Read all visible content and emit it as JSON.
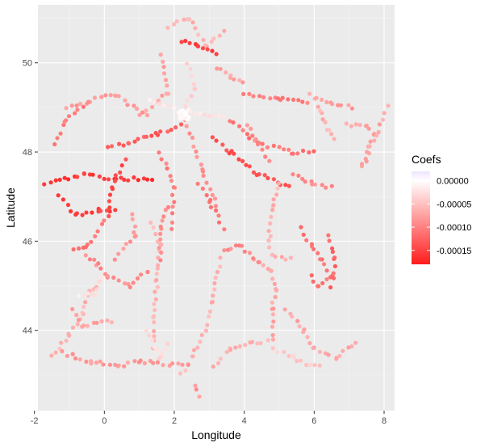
{
  "chart_data": {
    "type": "scatter",
    "xlabel": "Longitude",
    "ylabel": "Latitude",
    "xlim": [
      -1.9,
      8.3
    ],
    "ylim": [
      42.2,
      51.3
    ],
    "xticks": [
      -2,
      0,
      2,
      4,
      6,
      8
    ],
    "yticks": [
      44,
      46,
      48,
      50
    ],
    "grid": true,
    "legend": {
      "title": "Coefs",
      "position": "right",
      "type": "colorbar",
      "range": [
        -0.00018,
        2e-05
      ],
      "breaks": [
        0.0,
        -5e-05,
        -0.0001,
        -0.00015
      ],
      "break_labels": [
        "0.00000",
        "-0.00005",
        "-0.00010",
        "-0.00015"
      ],
      "colors": {
        "high": "#eee4ff",
        "mid": "#ffffff",
        "low": "#ff1c1c"
      }
    },
    "route_points": [
      {
        "path": [
          [
            1.8,
            50.8
          ],
          [
            2.4,
            51.0
          ],
          [
            2.9,
            50.4
          ],
          [
            3.4,
            50.7
          ]
        ],
        "coef": -6e-05
      },
      {
        "path": [
          [
            2.2,
            50.5
          ],
          [
            2.7,
            50.4
          ],
          [
            3.2,
            50.2
          ]
        ],
        "coef": -0.00015
      },
      {
        "path": [
          [
            1.6,
            50.2
          ],
          [
            1.8,
            49.3
          ],
          [
            1.0,
            48.8
          ]
        ],
        "coef": -7e-05
      },
      {
        "path": [
          [
            2.4,
            50.0
          ],
          [
            2.6,
            49.4
          ],
          [
            2.2,
            48.9
          ]
        ],
        "coef": -4e-05
      },
      {
        "path": [
          [
            1.3,
            49.2
          ],
          [
            2.3,
            48.9
          ],
          [
            3.4,
            48.8
          ]
        ],
        "coef": -2e-05
      },
      {
        "path": [
          [
            -1.1,
            49.0
          ],
          [
            0.3,
            49.3
          ],
          [
            1.2,
            48.8
          ]
        ],
        "coef": -8e-05
      },
      {
        "path": [
          [
            -1.4,
            48.2
          ],
          [
            -1.1,
            48.7
          ],
          [
            -0.5,
            49.1
          ]
        ],
        "coef": -0.0001
      },
      {
        "path": [
          [
            -1.7,
            47.3
          ],
          [
            -0.6,
            47.5
          ],
          [
            0.3,
            47.4
          ],
          [
            1.4,
            47.4
          ]
        ],
        "coef": -0.00016
      },
      {
        "path": [
          [
            -1.3,
            47.0
          ],
          [
            -0.8,
            46.6
          ],
          [
            -0.2,
            46.7
          ],
          [
            0.3,
            46.7
          ]
        ],
        "coef": -0.00015
      },
      {
        "path": [
          [
            0.1,
            48.1
          ],
          [
            0.7,
            48.2
          ],
          [
            1.5,
            48.4
          ],
          [
            2.2,
            48.6
          ]
        ],
        "coef": -0.00013
      },
      {
        "path": [
          [
            0.6,
            47.8
          ],
          [
            0.2,
            47.2
          ],
          [
            0.1,
            46.6
          ]
        ],
        "coef": -0.00014
      },
      {
        "path": [
          [
            1.6,
            48.0
          ],
          [
            2.0,
            47.2
          ],
          [
            1.9,
            46.3
          ]
        ],
        "coef": -0.0001
      },
      {
        "path": [
          [
            3.1,
            48.3
          ],
          [
            3.6,
            48.0
          ],
          [
            4.4,
            47.5
          ],
          [
            5.0,
            47.3
          ],
          [
            5.3,
            47.2
          ]
        ],
        "coef": -0.00014
      },
      {
        "path": [
          [
            2.3,
            48.7
          ],
          [
            2.8,
            47.6
          ],
          [
            3.2,
            46.8
          ]
        ],
        "coef": -9e-05
      },
      {
        "path": [
          [
            3.6,
            48.7
          ],
          [
            4.4,
            48.2
          ],
          [
            5.4,
            48.0
          ],
          [
            6.0,
            48.0
          ]
        ],
        "coef": -0.00011
      },
      {
        "path": [
          [
            4.0,
            49.3
          ],
          [
            5.0,
            49.2
          ],
          [
            5.8,
            49.1
          ]
        ],
        "coef": -0.0001
      },
      {
        "path": [
          [
            3.2,
            49.9
          ],
          [
            3.6,
            49.7
          ],
          [
            4.0,
            49.6
          ]
        ],
        "coef": -7e-05
      },
      {
        "path": [
          [
            5.9,
            49.3
          ],
          [
            6.2,
            48.9
          ],
          [
            6.4,
            48.5
          ],
          [
            6.6,
            48.3
          ]
        ],
        "coef": -6e-05
      },
      {
        "path": [
          [
            6.1,
            49.2
          ],
          [
            6.5,
            49.1
          ],
          [
            7.1,
            49.0
          ]
        ],
        "coef": -8e-05
      },
      {
        "path": [
          [
            6.9,
            48.6
          ],
          [
            7.5,
            48.6
          ],
          [
            7.7,
            48.4
          ],
          [
            7.4,
            47.7
          ],
          [
            8.1,
            49.0
          ]
        ],
        "coef": -7e-05
      },
      {
        "path": [
          [
            5.0,
            47.3
          ],
          [
            4.8,
            46.8
          ],
          [
            4.7,
            46.0
          ],
          [
            4.8,
            45.7
          ],
          [
            5.3,
            45.6
          ]
        ],
        "coef": -6e-05
      },
      {
        "path": [
          [
            4.3,
            45.6
          ],
          [
            4.8,
            45.3
          ],
          [
            4.9,
            44.9
          ],
          [
            4.8,
            44.5
          ],
          [
            4.8,
            43.9
          ]
        ],
        "coef": -7e-05
      },
      {
        "path": [
          [
            3.4,
            45.8
          ],
          [
            3.9,
            45.9
          ],
          [
            4.4,
            45.5
          ]
        ],
        "coef": -9e-05
      },
      {
        "path": [
          [
            5.6,
            46.3
          ],
          [
            5.9,
            45.9
          ],
          [
            6.2,
            45.6
          ],
          [
            6.5,
            45.2
          ],
          [
            6.1,
            45.0
          ],
          [
            5.9,
            45.2
          ]
        ],
        "coef": -0.00011
      },
      {
        "path": [
          [
            6.4,
            46.1
          ],
          [
            6.6,
            45.6
          ],
          [
            6.5,
            45.0
          ]
        ],
        "coef": -0.00012
      },
      {
        "path": [
          [
            5.2,
            44.5
          ],
          [
            5.7,
            44.0
          ],
          [
            6.0,
            43.6
          ],
          [
            6.6,
            43.4
          ],
          [
            7.2,
            43.7
          ]
        ],
        "coef": -7e-05
      },
      {
        "path": [
          [
            4.8,
            43.6
          ],
          [
            5.4,
            43.4
          ],
          [
            5.9,
            43.2
          ],
          [
            6.2,
            43.2
          ]
        ],
        "coef": -4e-05
      },
      {
        "path": [
          [
            3.1,
            43.2
          ],
          [
            3.6,
            43.6
          ],
          [
            4.2,
            43.7
          ],
          [
            4.8,
            43.8
          ]
        ],
        "coef": -6e-05
      },
      {
        "path": [
          [
            2.2,
            43.0
          ],
          [
            2.5,
            43.4
          ],
          [
            2.9,
            44.0
          ],
          [
            3.1,
            44.6
          ],
          [
            3.3,
            45.6
          ]
        ],
        "coef": -6e-05
      },
      {
        "path": [
          [
            2.6,
            42.8
          ],
          [
            2.7,
            42.5
          ]
        ],
        "coef": -8e-05
      },
      {
        "path": [
          [
            1.4,
            43.6
          ],
          [
            1.4,
            44.3
          ],
          [
            1.5,
            45.1
          ],
          [
            1.6,
            45.9
          ],
          [
            1.3,
            46.4
          ]
        ],
        "coef": -6e-05
      },
      {
        "path": [
          [
            1.2,
            44.0
          ],
          [
            1.6,
            43.4
          ],
          [
            1.8,
            43.7
          ]
        ],
        "coef": -3e-05
      },
      {
        "path": [
          [
            -1.5,
            43.4
          ],
          [
            -1.0,
            43.9
          ],
          [
            -0.6,
            44.4
          ],
          [
            -0.5,
            44.8
          ],
          [
            -0.2,
            45.0
          ]
        ],
        "coef": -6e-05
      },
      {
        "path": [
          [
            -0.7,
            44.8
          ],
          [
            -0.3,
            44.8
          ],
          [
            -0.1,
            45.2
          ]
        ],
        "coef": -2e-05
      },
      {
        "path": [
          [
            -1.2,
            43.5
          ],
          [
            -0.4,
            43.3
          ],
          [
            0.4,
            43.2
          ],
          [
            1.0,
            43.3
          ],
          [
            2.4,
            43.2
          ]
        ],
        "coef": -8e-05
      },
      {
        "path": [
          [
            -0.5,
            45.7
          ],
          [
            -0.2,
            45.5
          ],
          [
            0.1,
            45.2
          ],
          [
            0.7,
            45.0
          ],
          [
            1.2,
            45.3
          ]
        ],
        "coef": -9e-05
      },
      {
        "path": [
          [
            -0.9,
            45.8
          ],
          [
            -0.5,
            45.9
          ],
          [
            0.0,
            46.5
          ]
        ],
        "coef": -0.00011
      },
      {
        "path": [
          [
            0.3,
            45.6
          ],
          [
            0.9,
            46.1
          ],
          [
            0.8,
            46.6
          ]
        ],
        "coef": -8e-05
      },
      {
        "path": [
          [
            -0.9,
            44.5
          ],
          [
            -0.6,
            44.1
          ],
          [
            0.2,
            44.2
          ]
        ],
        "coef": -7e-05
      },
      {
        "path": [
          [
            1.8,
            46.8
          ],
          [
            1.6,
            46.3
          ],
          [
            1.6,
            45.6
          ]
        ],
        "coef": -9e-05
      },
      {
        "path": [
          [
            2.7,
            47.3
          ],
          [
            3.0,
            46.9
          ],
          [
            3.4,
            46.3
          ]
        ],
        "coef": -0.00011
      },
      {
        "path": [
          [
            4.1,
            48.6
          ],
          [
            4.3,
            48.3
          ],
          [
            4.7,
            47.8
          ]
        ],
        "coef": -9e-05
      },
      {
        "path": [
          [
            5.4,
            47.5
          ],
          [
            5.9,
            47.3
          ],
          [
            6.5,
            47.2
          ]
        ],
        "coef": -9e-05
      }
    ]
  }
}
